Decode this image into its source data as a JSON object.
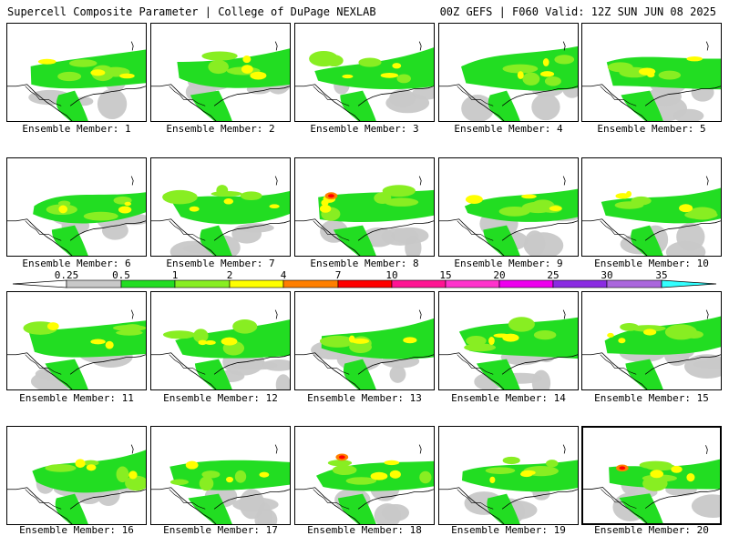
{
  "header": {
    "title": "Supercell Composite Parameter | College of DuPage NEXLAB",
    "run_info": "00Z GEFS | F060 Valid: 12Z SUN JUN 08 2025"
  },
  "panel_label_prefix": "Ensemble Member:",
  "selected_member": 20,
  "members": [
    {
      "id": 1,
      "label": "Ensemble Member: 1"
    },
    {
      "id": 2,
      "label": "Ensemble Member: 2"
    },
    {
      "id": 3,
      "label": "Ensemble Member: 3"
    },
    {
      "id": 4,
      "label": "Ensemble Member: 4"
    },
    {
      "id": 5,
      "label": "Ensemble Member: 5"
    },
    {
      "id": 6,
      "label": "Ensemble Member: 6"
    },
    {
      "id": 7,
      "label": "Ensemble Member: 7"
    },
    {
      "id": 8,
      "label": "Ensemble Member: 8"
    },
    {
      "id": 9,
      "label": "Ensemble Member: 9"
    },
    {
      "id": 10,
      "label": "Ensemble Member: 10"
    },
    {
      "id": 11,
      "label": "Ensemble Member: 11"
    },
    {
      "id": 12,
      "label": "Ensemble Member: 12"
    },
    {
      "id": 13,
      "label": "Ensemble Member: 13"
    },
    {
      "id": 14,
      "label": "Ensemble Member: 14"
    },
    {
      "id": 15,
      "label": "Ensemble Member: 15"
    },
    {
      "id": 16,
      "label": "Ensemble Member: 16"
    },
    {
      "id": 17,
      "label": "Ensemble Member: 17"
    },
    {
      "id": 18,
      "label": "Ensemble Member: 18"
    },
    {
      "id": 19,
      "label": "Ensemble Member: 19"
    },
    {
      "id": 20,
      "label": "Ensemble Member: 20"
    }
  ],
  "colorbar": {
    "ticks": [
      "0.25",
      "0.5",
      "1",
      "2",
      "4",
      "7",
      "10",
      "15",
      "20",
      "25",
      "30",
      "35"
    ],
    "colors": [
      "#c8c8c8",
      "#22dd22",
      "#88ee22",
      "#ffff00",
      "#ff7f00",
      "#ff0000",
      "#ff1493",
      "#ff33cc",
      "#ee00ee",
      "#8a2be2",
      "#aa66dd",
      "#33ffff"
    ]
  }
}
